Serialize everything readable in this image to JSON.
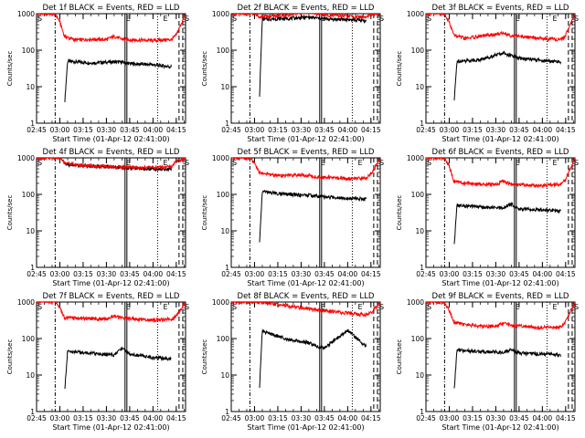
{
  "chart_data": [
    {
      "type": "line",
      "title": "Det 1f BLACK = Events, RED = LLD",
      "xlabel": "Start Time (01-Apr-12 02:41:00)",
      "ylabel": "Counts/sec",
      "ylim": [
        1,
        1000
      ],
      "yscale": "log",
      "x_tick_labels": [
        "02:45",
        "03:00",
        "03:15",
        "03:30",
        "03:45",
        "04:00",
        "04:15"
      ],
      "y_tick_labels": [
        "1",
        "10",
        "100",
        "1000"
      ],
      "markers": [
        "S",
        "E",
        "E",
        "S"
      ],
      "series": [
        {
          "name": "Events",
          "color": "#000000",
          "x": [
            3.0,
            3.05,
            3.083,
            3.333,
            3.583,
            3.667,
            3.75,
            4.0,
            4.2
          ],
          "y": [
            null,
            3,
            50,
            45,
            48,
            47,
            43,
            40,
            35
          ]
        },
        {
          "name": "LLD",
          "color": "#ff0000",
          "x": [
            2.75,
            2.95,
            3.0,
            3.05,
            3.167,
            3.333,
            3.5,
            3.583,
            3.667,
            3.833,
            4.0,
            4.2,
            4.25,
            4.35
          ],
          "y": [
            1000,
            1000,
            600,
            240,
            190,
            200,
            195,
            240,
            200,
            190,
            185,
            195,
            260,
            1000
          ]
        }
      ]
    },
    {
      "type": "line",
      "title": "Det 2f BLACK = Events, RED = LLD",
      "xlabel": "Start Time (01-Apr-12 02:41:00)",
      "ylabel": "Counts/sec",
      "ylim": [
        1,
        1000
      ],
      "yscale": "log",
      "x_tick_labels": [
        "02:45",
        "03:00",
        "03:15",
        "03:30",
        "03:45",
        "04:00",
        "04:15"
      ],
      "y_tick_labels": [
        "1",
        "10",
        "100",
        "1000"
      ],
      "markers": [
        "S",
        "E",
        "E",
        "S"
      ],
      "series": [
        {
          "name": "Events",
          "color": "#000000",
          "x": [
            3.0,
            3.05,
            3.083,
            3.333,
            3.583,
            3.667,
            3.75,
            4.0,
            4.2
          ],
          "y": [
            null,
            3,
            700,
            740,
            800,
            760,
            720,
            690,
            640
          ]
        },
        {
          "name": "LLD",
          "color": "#ff0000",
          "x": [
            2.75,
            2.95,
            3.0,
            3.05,
            3.167,
            3.333,
            3.5,
            3.583,
            3.667,
            3.833,
            4.0,
            4.2,
            4.25,
            4.35
          ],
          "y": [
            1000,
            1000,
            1000,
            850,
            850,
            900,
            1100,
            1200,
            1000,
            900,
            850,
            800,
            950,
            1000
          ]
        }
      ]
    },
    {
      "type": "line",
      "title": "Det 3f BLACK = Events, RED = LLD",
      "xlabel": "Start Time (01-Apr-12 02:41:00)",
      "ylabel": "Counts/sec",
      "ylim": [
        1,
        1000
      ],
      "yscale": "log",
      "x_tick_labels": [
        "02:45",
        "03:00",
        "03:15",
        "03:30",
        "03:45",
        "04:00",
        "04:15"
      ],
      "y_tick_labels": [
        "1",
        "10",
        "100",
        "1000"
      ],
      "markers": [
        "S",
        "E",
        "E",
        "S"
      ],
      "series": [
        {
          "name": "Events",
          "color": "#000000",
          "x": [
            3.0,
            3.05,
            3.083,
            3.333,
            3.583,
            3.667,
            3.75,
            4.0,
            4.2
          ],
          "y": [
            null,
            3,
            50,
            55,
            85,
            70,
            60,
            52,
            48
          ]
        },
        {
          "name": "LLD",
          "color": "#ff0000",
          "x": [
            2.75,
            2.95,
            3.0,
            3.05,
            3.167,
            3.333,
            3.5,
            3.583,
            3.667,
            3.833,
            4.0,
            4.2,
            4.25,
            4.35
          ],
          "y": [
            1000,
            1000,
            600,
            260,
            210,
            240,
            270,
            300,
            250,
            230,
            210,
            190,
            260,
            1000
          ]
        }
      ]
    },
    {
      "type": "line",
      "title": "Det 4f BLACK = Events, RED = LLD",
      "xlabel": "Start Time (01-Apr-12 02:41:00)",
      "ylabel": "Counts/sec",
      "ylim": [
        1,
        1000
      ],
      "yscale": "log",
      "x_tick_labels": [
        "02:45",
        "03:00",
        "03:15",
        "03:30",
        "03:45",
        "04:00",
        "04:15"
      ],
      "y_tick_labels": [
        "1",
        "10",
        "100",
        "1000"
      ],
      "markers": [
        "S",
        "E",
        "E",
        "S"
      ],
      "series": [
        {
          "name": "Events",
          "color": "#000000",
          "x": [
            3.0,
            3.05,
            3.083,
            3.333,
            3.583,
            3.667,
            3.75,
            4.0,
            4.2
          ],
          "y": [
            null,
            700,
            650,
            600,
            560,
            540,
            520,
            500,
            480
          ]
        },
        {
          "name": "LLD",
          "color": "#ff0000",
          "x": [
            2.75,
            2.95,
            3.0,
            3.05,
            3.167,
            3.333,
            3.5,
            3.583,
            3.667,
            3.833,
            4.0,
            4.2,
            4.25,
            4.35
          ],
          "y": [
            1000,
            1000,
            1000,
            750,
            650,
            600,
            580,
            570,
            560,
            550,
            540,
            560,
            800,
            1000
          ]
        }
      ]
    },
    {
      "type": "line",
      "title": "Det 5f BLACK = Events, RED = LLD",
      "xlabel": "Start Time (01-Apr-12 02:41:00)",
      "ylabel": "Counts/sec",
      "ylim": [
        1,
        1000
      ],
      "yscale": "log",
      "x_tick_labels": [
        "02:45",
        "03:00",
        "03:15",
        "03:30",
        "03:45",
        "04:00",
        "04:15"
      ],
      "y_tick_labels": [
        "1",
        "10",
        "100",
        "1000"
      ],
      "markers": [
        "S",
        "E",
        "E",
        "S"
      ],
      "series": [
        {
          "name": "Events",
          "color": "#000000",
          "x": [
            3.0,
            3.05,
            3.083,
            3.333,
            3.583,
            3.667,
            3.75,
            4.0,
            4.2
          ],
          "y": [
            null,
            3,
            120,
            100,
            95,
            90,
            85,
            80,
            75
          ]
        },
        {
          "name": "LLD",
          "color": "#ff0000",
          "x": [
            2.75,
            2.95,
            3.0,
            3.05,
            3.167,
            3.333,
            3.5,
            3.583,
            3.667,
            3.833,
            4.0,
            4.2,
            4.25,
            4.35
          ],
          "y": [
            1000,
            1000,
            700,
            400,
            350,
            320,
            340,
            330,
            300,
            290,
            270,
            280,
            350,
            1000
          ]
        }
      ]
    },
    {
      "type": "line",
      "title": "Det 6f BLACK = Events, RED = LLD",
      "xlabel": "Start Time (01-Apr-12 02:41:00)",
      "ylabel": "Counts/sec",
      "ylim": [
        1,
        1000
      ],
      "yscale": "log",
      "x_tick_labels": [
        "02:45",
        "03:00",
        "03:15",
        "03:30",
        "03:45",
        "04:00",
        "04:15"
      ],
      "y_tick_labels": [
        "1",
        "10",
        "100",
        "1000"
      ],
      "markers": [
        "S",
        "E",
        "E",
        "S"
      ],
      "series": [
        {
          "name": "Events",
          "color": "#000000",
          "x": [
            3.0,
            3.05,
            3.083,
            3.333,
            3.583,
            3.667,
            3.75,
            4.0,
            4.2
          ],
          "y": [
            null,
            3,
            50,
            45,
            42,
            55,
            40,
            38,
            35
          ]
        },
        {
          "name": "LLD",
          "color": "#ff0000",
          "x": [
            2.75,
            2.95,
            3.0,
            3.05,
            3.167,
            3.333,
            3.5,
            3.583,
            3.667,
            3.833,
            4.0,
            4.2,
            4.25,
            4.35
          ],
          "y": [
            1000,
            1000,
            600,
            230,
            200,
            190,
            185,
            230,
            190,
            180,
            175,
            190,
            260,
            1000
          ]
        }
      ]
    },
    {
      "type": "line",
      "title": "Det 7f BLACK = Events, RED = LLD",
      "xlabel": "Start Time (01-Apr-12 02:41:00)",
      "ylabel": "Counts/sec",
      "ylim": [
        1,
        1000
      ],
      "yscale": "log",
      "x_tick_labels": [
        "02:45",
        "03:00",
        "03:15",
        "03:30",
        "03:45",
        "04:00",
        "04:15"
      ],
      "y_tick_labels": [
        "1",
        "10",
        "100",
        "1000"
      ],
      "markers": [
        "S",
        "E",
        "E",
        "S"
      ],
      "series": [
        {
          "name": "Events",
          "color": "#000000",
          "x": [
            3.0,
            3.05,
            3.083,
            3.333,
            3.583,
            3.667,
            3.75,
            4.0,
            4.2
          ],
          "y": [
            null,
            3,
            45,
            40,
            35,
            55,
            38,
            30,
            28
          ]
        },
        {
          "name": "LLD",
          "color": "#ff0000",
          "x": [
            2.75,
            2.95,
            3.0,
            3.05,
            3.167,
            3.333,
            3.5,
            3.583,
            3.667,
            3.833,
            4.0,
            4.2,
            4.25,
            4.35
          ],
          "y": [
            1000,
            1000,
            700,
            380,
            360,
            350,
            340,
            420,
            360,
            340,
            320,
            340,
            400,
            1000
          ]
        }
      ]
    },
    {
      "type": "line",
      "title": "Det 8f BLACK = Events, RED = LLD",
      "xlabel": "Start Time (01-Apr-12 02:41:00)",
      "ylabel": "Counts/sec",
      "ylim": [
        1,
        1000
      ],
      "yscale": "log",
      "x_tick_labels": [
        "02:45",
        "03:00",
        "03:15",
        "03:30",
        "03:45",
        "04:00",
        "04:15"
      ],
      "y_tick_labels": [
        "1",
        "10",
        "100",
        "1000"
      ],
      "markers": [
        "S",
        "E",
        "E",
        "S"
      ],
      "series": [
        {
          "name": "Events",
          "color": "#000000",
          "x": [
            3.0,
            3.05,
            3.083,
            3.333,
            3.583,
            3.667,
            3.75,
            4.0,
            4.2
          ],
          "y": [
            null,
            3,
            160,
            100,
            75,
            60,
            55,
            170,
            60
          ]
        },
        {
          "name": "LLD",
          "color": "#ff0000",
          "x": [
            2.75,
            2.95,
            3.0,
            3.05,
            3.167,
            3.333,
            3.5,
            3.583,
            3.667,
            3.833,
            4.0,
            4.2,
            4.25,
            4.35
          ],
          "y": [
            1000,
            1000,
            1000,
            1000,
            900,
            800,
            700,
            650,
            600,
            550,
            500,
            450,
            500,
            1000
          ]
        }
      ]
    },
    {
      "type": "line",
      "title": "Det 9f BLACK = Events, RED = LLD",
      "xlabel": "Start Time (01-Apr-12 02:41:00)",
      "ylabel": "Counts/sec",
      "ylim": [
        1,
        1000
      ],
      "yscale": "log",
      "x_tick_labels": [
        "02:45",
        "03:00",
        "03:15",
        "03:30",
        "03:45",
        "04:00",
        "04:15"
      ],
      "y_tick_labels": [
        "1",
        "10",
        "100",
        "1000"
      ],
      "markers": [
        "S",
        "E",
        "E",
        "S"
      ],
      "series": [
        {
          "name": "Events",
          "color": "#000000",
          "x": [
            3.0,
            3.05,
            3.083,
            3.333,
            3.583,
            3.667,
            3.75,
            4.0,
            4.2
          ],
          "y": [
            null,
            3,
            48,
            44,
            42,
            50,
            40,
            38,
            35
          ]
        },
        {
          "name": "LLD",
          "color": "#ff0000",
          "x": [
            2.75,
            2.95,
            3.0,
            3.05,
            3.167,
            3.333,
            3.5,
            3.583,
            3.667,
            3.833,
            4.0,
            4.2,
            4.25,
            4.35
          ],
          "y": [
            1000,
            1000,
            600,
            280,
            240,
            220,
            220,
            260,
            230,
            210,
            200,
            210,
            290,
            1000
          ]
        }
      ]
    }
  ]
}
